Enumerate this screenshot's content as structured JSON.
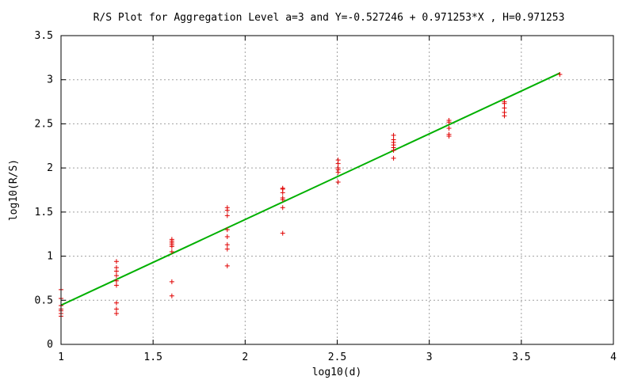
{
  "chart_data": {
    "type": "scatter",
    "title": "R/S Plot for Aggregation Level a=3 and Y=-0.527246 + 0.971253*X , H=0.971253",
    "xlabel": "log10(d)",
    "ylabel": "log10(R/S)",
    "xlim": [
      1,
      4
    ],
    "ylim": [
      0,
      3.5
    ],
    "xticks": [
      1,
      1.5,
      2,
      2.5,
      3,
      3.5,
      4
    ],
    "xtick_labels": [
      "1",
      "1.5",
      "2",
      "2.5",
      "3",
      "3.5",
      "4"
    ],
    "yticks": [
      0,
      0.5,
      1,
      1.5,
      2,
      2.5,
      3,
      3.5
    ],
    "ytick_labels": [
      "0",
      "0.5",
      "1",
      "1.5",
      "2",
      "2.5",
      "3",
      "3.5"
    ],
    "grid": true,
    "legend": "none",
    "points": {
      "color": "#e00000",
      "marker": "plus",
      "x": [
        1.0,
        1.0,
        1.0,
        1.0,
        1.0,
        1.0,
        1.0,
        1.301,
        1.301,
        1.301,
        1.301,
        1.301,
        1.301,
        1.301,
        1.301,
        1.301,
        1.602,
        1.602,
        1.602,
        1.602,
        1.602,
        1.602,
        1.602,
        1.602,
        1.903,
        1.903,
        1.903,
        1.903,
        1.903,
        1.903,
        1.903,
        1.903,
        2.204,
        2.204,
        2.204,
        2.204,
        2.204,
        2.204,
        2.204,
        2.505,
        2.505,
        2.505,
        2.505,
        2.505,
        2.505,
        2.806,
        2.806,
        2.806,
        2.806,
        2.806,
        2.806,
        2.806,
        3.107,
        3.107,
        3.107,
        3.107,
        3.107,
        3.408,
        3.408,
        3.408,
        3.408,
        3.408,
        3.709
      ],
      "y": [
        0.62,
        0.52,
        0.44,
        0.4,
        0.38,
        0.35,
        0.32,
        0.94,
        0.87,
        0.83,
        0.78,
        0.72,
        0.67,
        0.47,
        0.4,
        0.35,
        1.19,
        1.17,
        1.15,
        1.13,
        1.11,
        1.05,
        0.71,
        0.55,
        1.55,
        1.52,
        1.46,
        1.3,
        1.22,
        1.13,
        1.08,
        0.89,
        1.77,
        1.76,
        1.72,
        1.66,
        1.64,
        1.55,
        1.26,
        2.09,
        2.05,
        2.0,
        1.98,
        1.95,
        1.84,
        2.37,
        2.32,
        2.29,
        2.26,
        2.23,
        2.2,
        2.11,
        2.54,
        2.52,
        2.45,
        2.38,
        2.36,
        2.75,
        2.73,
        2.68,
        2.63,
        2.59,
        3.06
      ]
    },
    "fit_line": {
      "color": "#00b000",
      "intercept": -0.527246,
      "slope": 0.971253,
      "x_range": [
        1.0,
        3.709
      ]
    }
  }
}
